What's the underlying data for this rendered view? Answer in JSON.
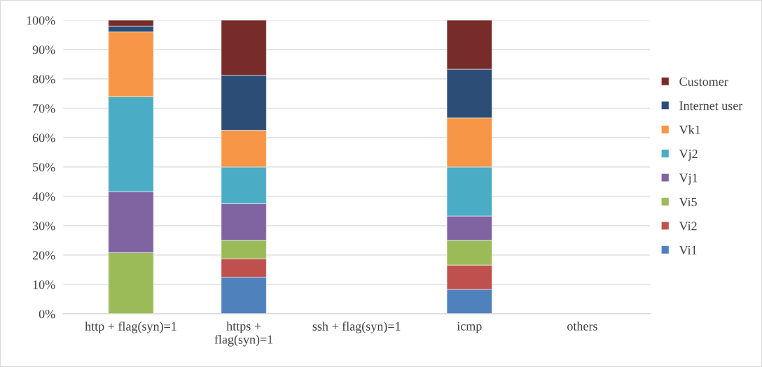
{
  "chart_data": {
    "type": "bar",
    "stacked": true,
    "categories": [
      "http + flag(syn)=1",
      "https +\nflag(syn)=1",
      "ssh + flag(syn)=1",
      "icmp",
      "others"
    ],
    "series": [
      {
        "name": "Vi1",
        "color": "#4f81bd",
        "values": [
          null,
          12.5,
          null,
          8.3,
          null
        ]
      },
      {
        "name": "Vi2",
        "color": "#c0504d",
        "values": [
          null,
          6.25,
          null,
          8.3,
          null
        ]
      },
      {
        "name": "Vi5",
        "color": "#9bbb59",
        "values": [
          20.8,
          6.25,
          null,
          8.4,
          null
        ]
      },
      {
        "name": "Vj1",
        "color": "#8064a2",
        "values": [
          20.8,
          12.5,
          null,
          8.3,
          null
        ]
      },
      {
        "name": "Vj2",
        "color": "#4bacc6",
        "values": [
          32.3,
          12.5,
          null,
          16.7,
          null
        ]
      },
      {
        "name": "Vk1",
        "color": "#f79646",
        "values": [
          22.1,
          12.5,
          null,
          16.7,
          null
        ]
      },
      {
        "name": "Internet user",
        "color": "#2c4d75",
        "values": [
          2,
          18.75,
          null,
          16.6,
          null
        ]
      },
      {
        "name": "Customer",
        "color": "#772c2a",
        "values": [
          2,
          18.75,
          null,
          16.7,
          null
        ]
      }
    ],
    "ylim": [
      0,
      100
    ],
    "yticks": [
      {
        "value": 0,
        "label": "0%"
      },
      {
        "value": 10,
        "label": "10%"
      },
      {
        "value": 20,
        "label": "20%"
      },
      {
        "value": 30,
        "label": "30%"
      },
      {
        "value": 40,
        "label": "40%"
      },
      {
        "value": 50,
        "label": "50%"
      },
      {
        "value": 60,
        "label": "60%"
      },
      {
        "value": 70,
        "label": "70%"
      },
      {
        "value": 80,
        "label": "80%"
      },
      {
        "value": 90,
        "label": "90%"
      },
      {
        "value": 100,
        "label": "100%"
      }
    ],
    "grid": "y",
    "legend": "right"
  }
}
